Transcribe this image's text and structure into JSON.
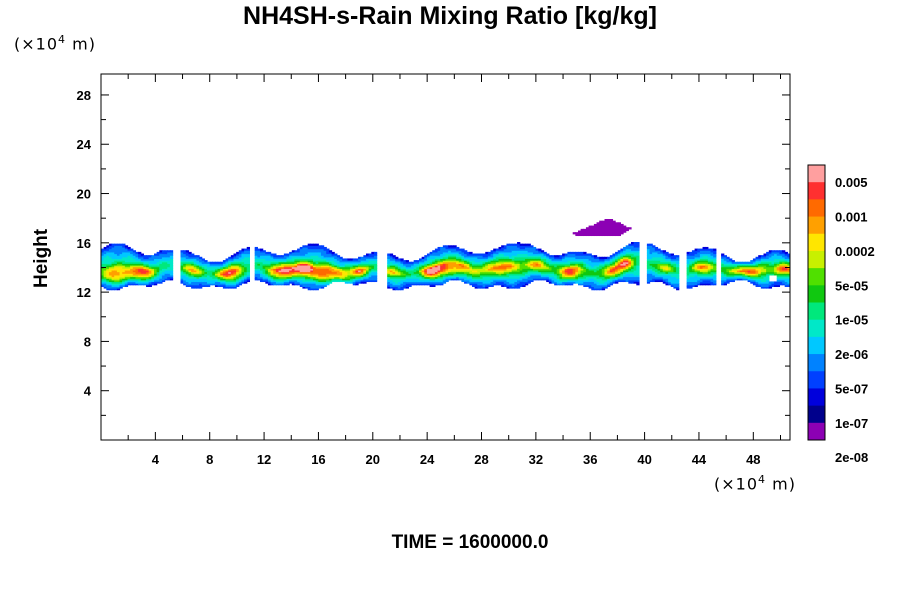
{
  "chart_data": {
    "type": "contour",
    "title": "NH4SH-s-Rain Mixing Ratio [kg/kg]",
    "ylabel": "Height",
    "y_unit_prefix": "(×10",
    "y_unit_exp": "4",
    "y_unit_suffix": " m)",
    "x_unit_prefix": "(×10",
    "x_unit_exp": "4",
    "x_unit_suffix": " m)",
    "x_ticks": [
      4,
      8,
      12,
      16,
      20,
      24,
      28,
      32,
      36,
      40,
      44,
      48
    ],
    "x_tick_labels": [
      "4",
      "8",
      "12",
      "16",
      "20",
      "24",
      "28",
      "32",
      "36",
      "40",
      "44",
      "48"
    ],
    "y_ticks": [
      4,
      8,
      12,
      16,
      20,
      24,
      28
    ],
    "y_tick_labels": [
      "4",
      "8",
      "12",
      "16",
      "20",
      "24",
      "28"
    ],
    "xlim": [
      0,
      50.7
    ],
    "ylim": [
      0,
      29.7
    ],
    "colorbar": {
      "labels": [
        "0.005",
        "0.001",
        "0.0002",
        "5e-05",
        "1e-05",
        "2e-06",
        "5e-07",
        "1e-07",
        "2e-08"
      ],
      "colors": [
        "#ff9f9f",
        "#ff3030",
        "#ff6a00",
        "#ffa000",
        "#ffe600",
        "#c8f000",
        "#50e000",
        "#10c810",
        "#00e87c",
        "#00e8c8",
        "#00c8ff",
        "#0082ff",
        "#0040ff",
        "#0000dc",
        "#00008c",
        "#8c00b4"
      ]
    },
    "features": [
      {
        "type": "band",
        "x_range": [
          0,
          50.7
        ],
        "y_range": [
          12.2,
          16.2
        ],
        "description_levels": "main cloud layer"
      },
      {
        "type": "patch",
        "x": 36.5,
        "y": 17.3,
        "level": "2e-08"
      }
    ],
    "time_label": "TIME = 1600000.0"
  }
}
